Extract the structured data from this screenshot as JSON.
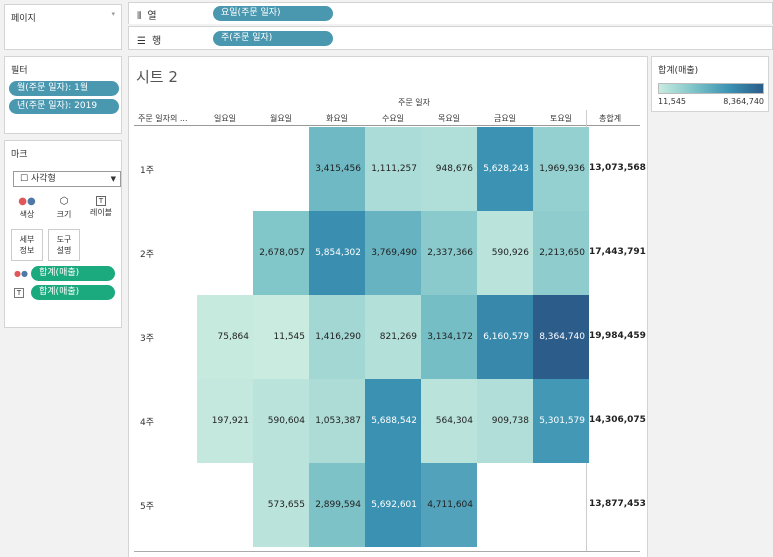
{
  "pages": {
    "title": "페이지"
  },
  "filters": {
    "title": "필터",
    "items": [
      "월(주문 일자): 1월",
      "년(주문 일자): 2019"
    ]
  },
  "marks": {
    "title": "마크",
    "type_label": "사각형",
    "buttons": [
      {
        "label": "색상",
        "icon": "color-dots-icon"
      },
      {
        "label": "크기",
        "icon": "size-icon"
      },
      {
        "label": "레이블",
        "icon": "label-icon"
      },
      {
        "label": "세부\n정보",
        "icon": "detail-icon"
      },
      {
        "label": "도구\n설명",
        "icon": "tooltip-icon"
      }
    ],
    "fields": [
      {
        "icon": "color-dots-icon",
        "label": "합계(매출)"
      },
      {
        "icon": "text-icon",
        "label": "합계(매출)"
      }
    ]
  },
  "shelves": {
    "columns": {
      "label": "열",
      "pill": "요일(주문 일자)"
    },
    "rows": {
      "label": "행",
      "pill": "주(주문 일자)"
    }
  },
  "sheet": {
    "title": "시트 2",
    "column_header": "주문 일자",
    "row_header": "주문 일자의 ...",
    "days": [
      "일요일",
      "월요일",
      "화요일",
      "수요일",
      "목요일",
      "금요일",
      "토요일"
    ],
    "total_label": "총합계",
    "weeks": [
      "1주",
      "2주",
      "3주",
      "4주",
      "5주"
    ],
    "values": [
      [
        null,
        null,
        3415456,
        1111257,
        948676,
        5628243,
        1969936
      ],
      [
        null,
        2678057,
        5854302,
        3769490,
        2337366,
        590926,
        2213650
      ],
      [
        75864,
        11545,
        1416290,
        821269,
        3134172,
        6160579,
        8364740
      ],
      [
        197921,
        590604,
        1053387,
        5688542,
        564304,
        909738,
        5301579
      ],
      [
        null,
        573655,
        2899594,
        5692601,
        4711604,
        null,
        null
      ]
    ],
    "value_labels": [
      [
        null,
        null,
        "3,415,456",
        "1,111,257",
        "948,676",
        "5,628,243",
        "1,969,936"
      ],
      [
        null,
        "2,678,057",
        "5,854,302",
        "3,769,490",
        "2,337,366",
        "590,926",
        "2,213,650"
      ],
      [
        "75,864",
        "11,545",
        "1,416,290",
        "821,269",
        "3,134,172",
        "6,160,579",
        "8,364,740"
      ],
      [
        "197,921",
        "590,604",
        "1,053,387",
        "5,688,542",
        "564,304",
        "909,738",
        "5,301,579"
      ],
      [
        null,
        "573,655",
        "2,899,594",
        "5,692,601",
        "4,711,604",
        null,
        null
      ]
    ],
    "totals": [
      "13,073,568",
      "17,443,791",
      "19,984,459",
      "14,306,075",
      "13,877,453"
    ]
  },
  "legend": {
    "title": "합계(매출)",
    "min_label": "11,545",
    "max_label": "8,364,740",
    "min": 11545,
    "max": 8364740,
    "color_low": "#c9ebe0",
    "color_high": "#2b5c8a"
  }
}
